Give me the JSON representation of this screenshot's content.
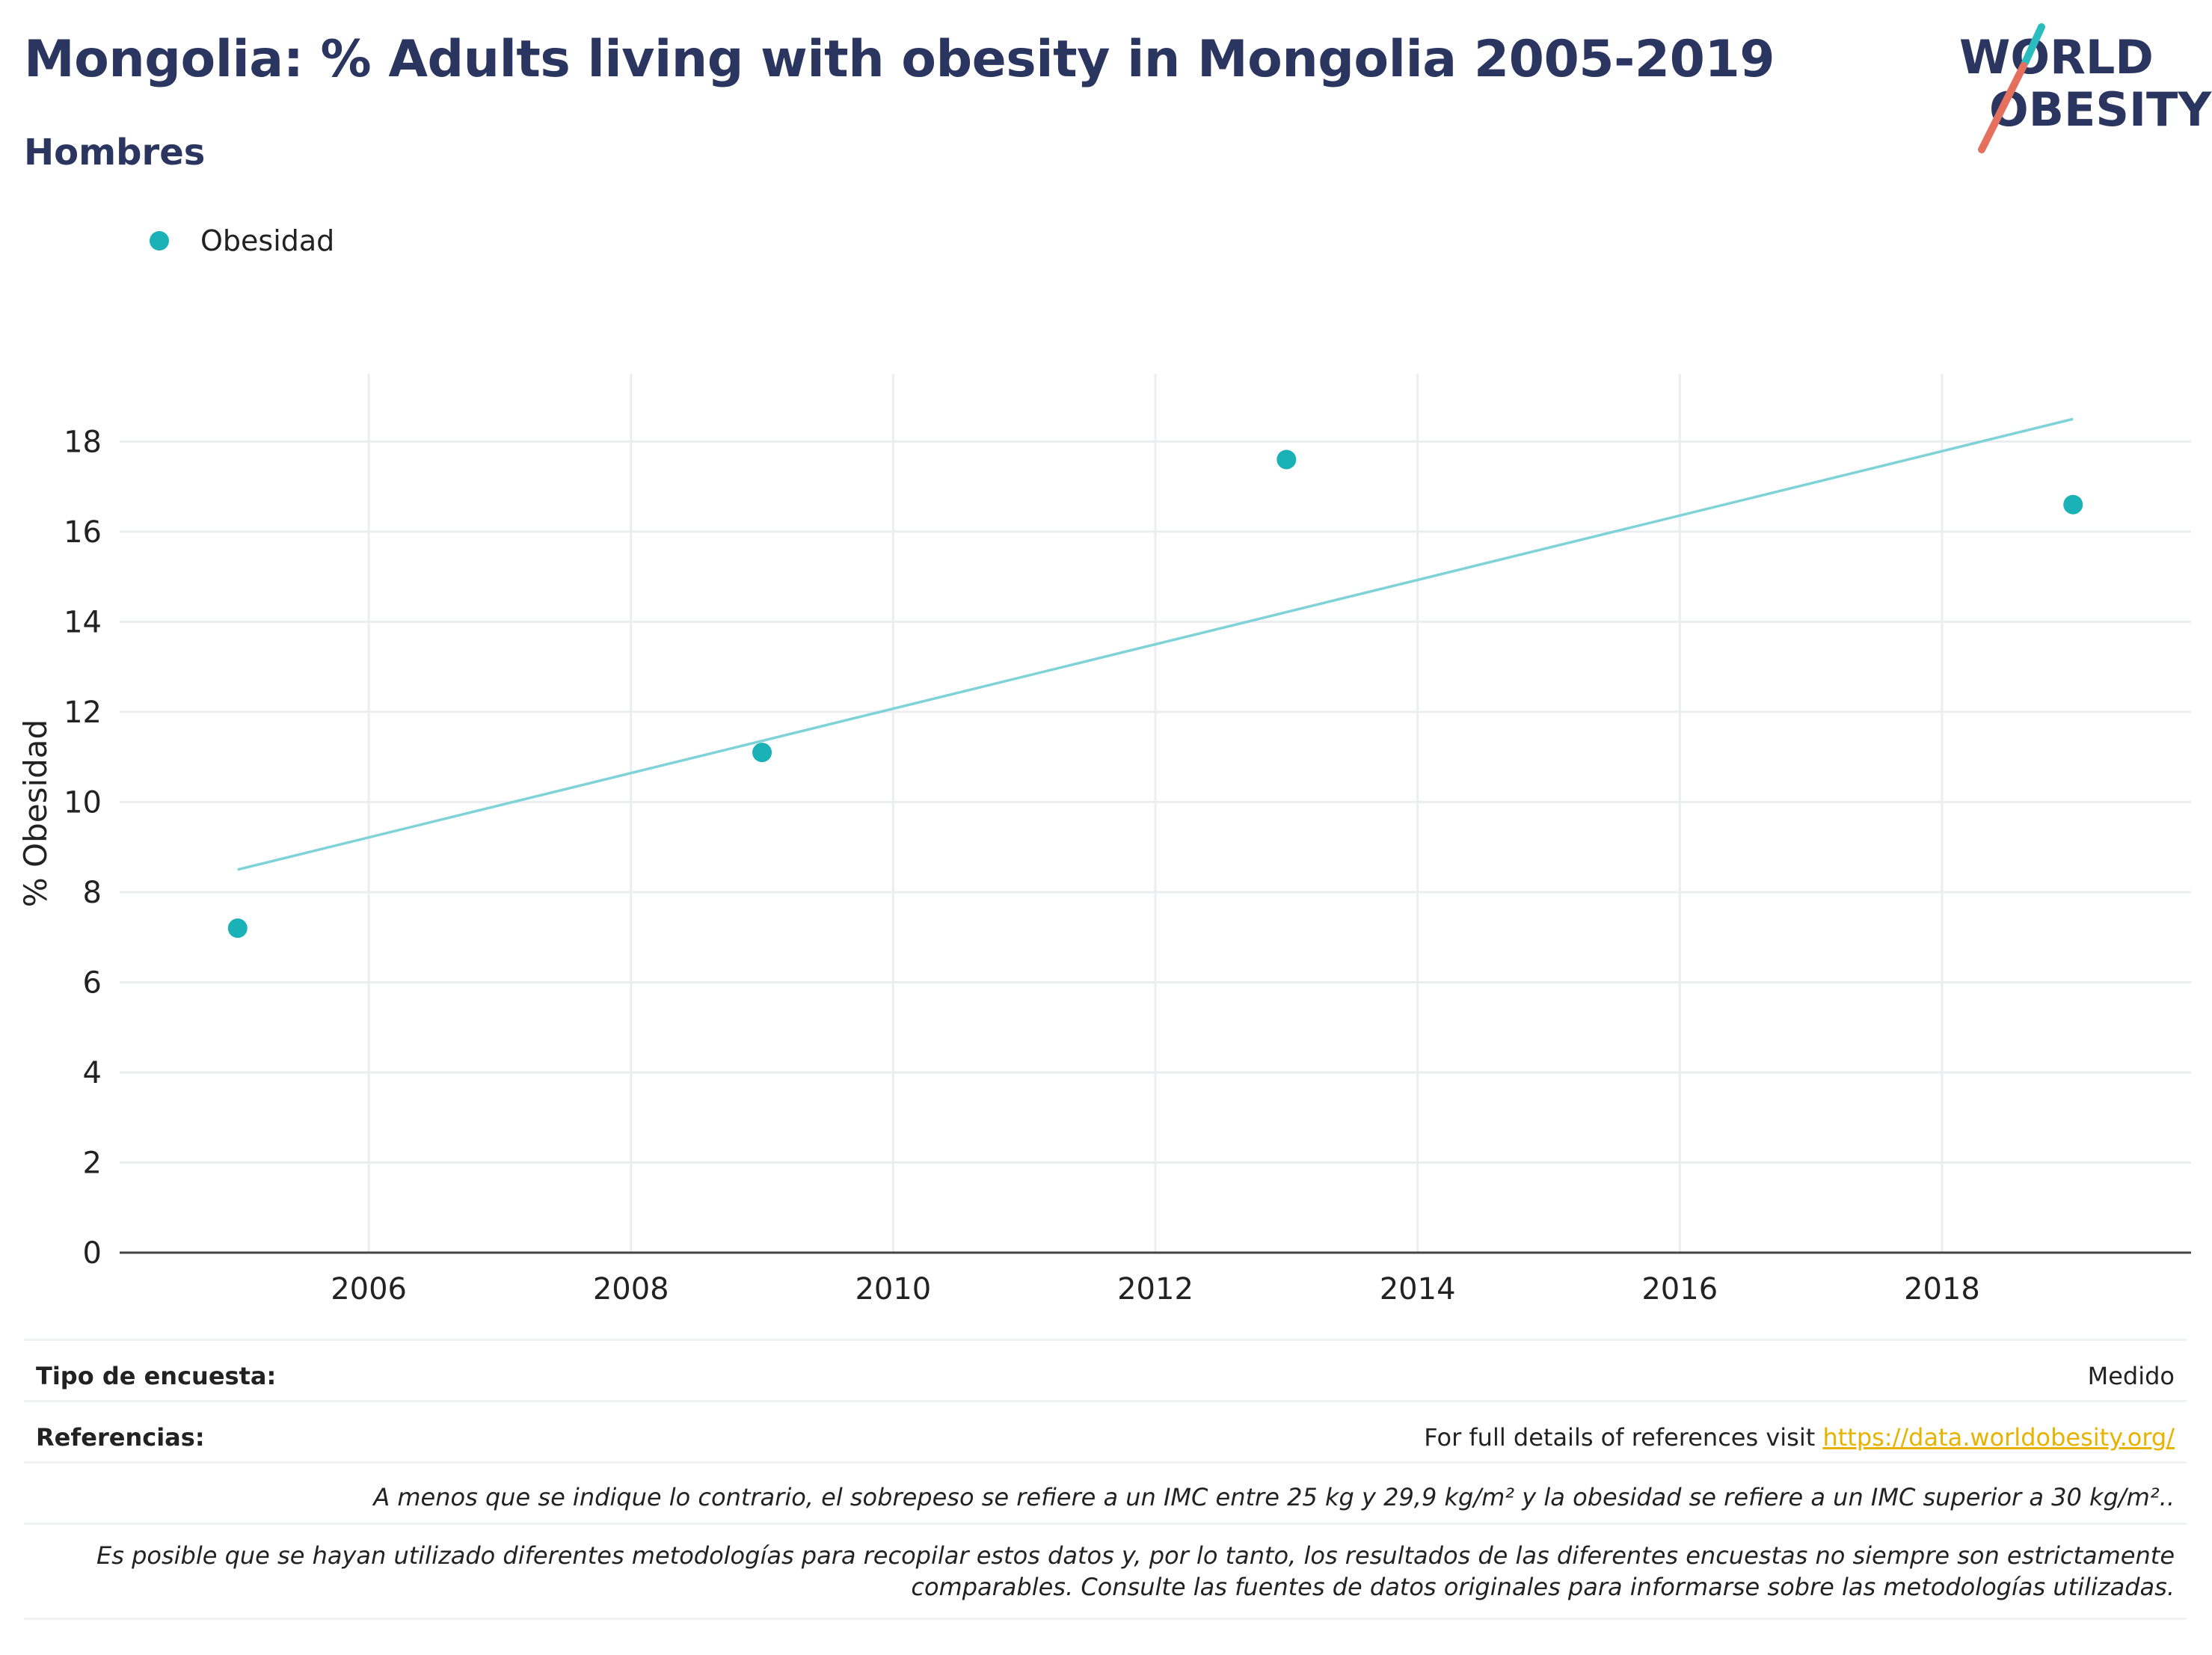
{
  "header": {
    "title": "Mongolia: % Adults living with obesity in Mongolia 2005-2019",
    "subtitle": "Hombres"
  },
  "logo": {
    "line1": "WORLD",
    "line2": "OBESITY",
    "colors": {
      "navy": "#2a3560",
      "teal": "#2bbcc0",
      "coral": "#e5705e"
    }
  },
  "legend": {
    "label": "Obesidad"
  },
  "chart_data": {
    "type": "scatter",
    "ylabel": "% Obesidad",
    "xlabel": "",
    "xlim": [
      2004.1,
      2019.9
    ],
    "ylim": [
      0,
      19.5
    ],
    "x_ticks": [
      2006,
      2008,
      2010,
      2012,
      2014,
      2016,
      2018
    ],
    "y_ticks": [
      0,
      2,
      4,
      6,
      8,
      10,
      12,
      14,
      16,
      18
    ],
    "grid": true,
    "series": [
      {
        "name": "Obesidad",
        "color": "#1ab1b7",
        "points": [
          {
            "x": 2005,
            "y": 7.2
          },
          {
            "x": 2009,
            "y": 11.1
          },
          {
            "x": 2013,
            "y": 17.6
          },
          {
            "x": 2019,
            "y": 16.6
          }
        ]
      }
    ],
    "trendline": {
      "color": "#7fd3d8",
      "points": [
        {
          "x": 2005,
          "y": 8.5
        },
        {
          "x": 2019,
          "y": 18.5
        }
      ]
    }
  },
  "info": {
    "survey_type_label": "Tipo de encuesta:",
    "survey_type_value": "Medido",
    "references_label": "Referencias:",
    "references_text": "For full details of references visit ",
    "references_link": "https://data.worldobesity.org/",
    "note1": "A menos que se indique lo contrario, el sobrepeso se refiere a un IMC entre 25 kg y 29,9 kg/m² y la obesidad se refiere a un IMC superior a 30 kg/m²..",
    "note2": "Es posible que se hayan utilizado diferentes metodologías para recopilar estos datos y, por lo tanto, los resultados de las diferentes encuestas no siempre son estrictamente comparables. Consulte las fuentes de datos originales para informarse sobre las metodologías utilizadas."
  }
}
